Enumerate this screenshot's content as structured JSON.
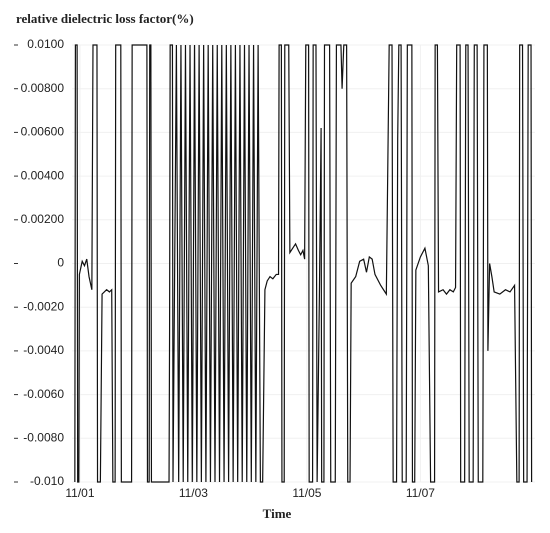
{
  "chart_data": {
    "type": "line",
    "title": "relative dielectric loss factor(%)",
    "x_label": "Time",
    "color": "#111111",
    "grid": true,
    "xlim": [
      0.86,
      9.02
    ],
    "xticks": [
      {
        "value": 1,
        "label": "11/01"
      },
      {
        "value": 3,
        "label": "11/03"
      },
      {
        "value": 5,
        "label": "11/05"
      },
      {
        "value": 7,
        "label": "11/07"
      }
    ],
    "ylim": [
      -0.01,
      0.01
    ],
    "yticks": [
      {
        "value": 0.01,
        "label": "0.0100"
      },
      {
        "value": 0.008,
        "label": "0.00800"
      },
      {
        "value": 0.006,
        "label": "0.00600"
      },
      {
        "value": 0.004,
        "label": "0.00400"
      },
      {
        "value": 0.002,
        "label": "0.00200"
      },
      0,
      {
        "value": -0.002,
        "label": "-0.0020"
      },
      {
        "value": -0.004,
        "label": "-0.0040"
      },
      {
        "value": -0.006,
        "label": "-0.0060"
      },
      {
        "value": -0.008,
        "label": "-0.0080"
      },
      {
        "value": -0.01,
        "label": "-0.010"
      }
    ],
    "x": [
      0.91,
      0.92,
      0.95,
      0.96,
      0.98,
      0.99,
      1.04,
      1.08,
      1.12,
      1.16,
      1.21,
      1.23,
      1.3,
      1.31,
      1.36,
      1.39,
      1.47,
      1.52,
      1.56,
      1.58,
      1.62,
      1.63,
      1.72,
      1.73,
      1.91,
      1.92,
      2.18,
      2.19,
      2.22,
      2.23,
      2.25,
      2.26,
      2.57,
      2.58,
      2.59,
      2.63,
      2.64,
      2.7,
      2.74,
      2.78,
      2.82,
      2.86,
      2.9,
      2.94,
      2.98,
      3.02,
      3.06,
      3.1,
      3.14,
      3.18,
      3.22,
      3.26,
      3.3,
      3.34,
      3.38,
      3.42,
      3.46,
      3.5,
      3.54,
      3.58,
      3.62,
      3.66,
      3.7,
      3.74,
      3.78,
      3.82,
      3.86,
      3.9,
      3.94,
      3.98,
      4.02,
      4.06,
      4.1,
      4.14,
      4.18,
      4.22,
      4.26,
      4.3,
      4.35,
      4.4,
      4.46,
      4.5,
      4.51,
      4.55,
      4.56,
      4.6,
      4.61,
      4.68,
      4.7,
      4.75,
      4.8,
      4.85,
      4.89,
      4.93,
      4.96,
      4.98,
      5.03,
      5.04,
      5.1,
      5.11,
      5.16,
      5.18,
      5.22,
      5.25,
      5.26,
      5.3,
      5.31,
      5.4,
      5.42,
      5.5,
      5.52,
      5.6,
      5.62,
      5.65,
      5.7,
      5.72,
      5.76,
      5.78,
      5.86,
      5.93,
      6.0,
      6.05,
      6.1,
      6.15,
      6.2,
      6.3,
      6.4,
      6.45,
      6.5,
      6.52,
      6.58,
      6.6,
      6.62,
      6.66,
      6.68,
      6.75,
      6.77,
      6.85,
      6.86,
      6.9,
      6.92,
      7.0,
      7.08,
      7.14,
      7.18,
      7.25,
      7.26,
      7.3,
      7.32,
      7.4,
      7.46,
      7.52,
      7.58,
      7.62,
      7.64,
      7.7,
      7.71,
      7.78,
      7.8,
      7.84,
      7.86,
      7.93,
      7.95,
      8.0,
      8.02,
      8.1,
      8.12,
      8.18,
      8.19,
      8.22,
      8.26,
      8.3,
      8.4,
      8.5,
      8.58,
      8.66,
      8.7,
      8.74,
      8.75,
      8.8,
      8.82,
      8.88,
      8.9,
      8.95,
      8.96
    ],
    "values": [
      -0.01,
      0.01,
      0.01,
      -0.01,
      -0.01,
      -0.0005,
      0.0001,
      -0.0001,
      0.0002,
      -0.0006,
      -0.0012,
      0.01,
      0.01,
      -0.01,
      -0.01,
      -0.0014,
      -0.0012,
      -0.0013,
      -0.0012,
      -0.01,
      -0.01,
      0.01,
      0.01,
      -0.01,
      -0.01,
      0.01,
      0.01,
      -0.01,
      -0.01,
      0.01,
      0.01,
      -0.01,
      -0.01,
      -0.003,
      0.01,
      0.01,
      -0.01,
      0.01,
      -0.01,
      0.01,
      -0.01,
      0.01,
      -0.01,
      0.01,
      -0.01,
      0.01,
      -0.01,
      0.01,
      -0.01,
      0.01,
      -0.01,
      0.01,
      -0.01,
      0.01,
      -0.01,
      0.01,
      -0.01,
      0.01,
      -0.01,
      0.01,
      -0.01,
      0.01,
      -0.01,
      0.01,
      -0.01,
      0.01,
      -0.01,
      0.01,
      -0.01,
      0.01,
      -0.01,
      0.01,
      -0.01,
      0.01,
      -0.01,
      -0.01,
      -0.0012,
      -0.0008,
      -0.0006,
      -0.0007,
      -0.0005,
      -0.0005,
      0.01,
      0.01,
      -0.01,
      -0.01,
      0.01,
      0.01,
      0.0005,
      0.0007,
      0.0009,
      0.0006,
      0.0004,
      0.0006,
      0.0002,
      0.01,
      0.01,
      -0.01,
      -0.01,
      0.01,
      0.01,
      -0.01,
      -0.0015,
      0.0062,
      -0.01,
      -0.01,
      0.01,
      0.01,
      -0.01,
      -0.01,
      0.01,
      0.01,
      0.008,
      0.01,
      0.01,
      -0.01,
      -0.01,
      -0.0009,
      -0.0006,
      0.0001,
      0.0002,
      -0.0004,
      0.0003,
      0.0002,
      -0.0005,
      -0.001,
      -0.0014,
      0.01,
      0.01,
      -0.01,
      -0.01,
      0.0057,
      0.01,
      0.01,
      -0.01,
      -0.01,
      0.01,
      0.01,
      -0.01,
      -0.01,
      -0.0003,
      0.0003,
      0.0007,
      -0.0001,
      -0.01,
      -0.01,
      0.01,
      0.01,
      -0.0013,
      -0.0012,
      -0.0014,
      -0.0012,
      -0.0013,
      -0.0011,
      0.01,
      0.01,
      -0.01,
      -0.01,
      0.01,
      0.01,
      -0.01,
      -0.01,
      0.01,
      0.01,
      -0.01,
      -0.01,
      0.01,
      0.01,
      -0.004,
      0,
      -0.0006,
      -0.0013,
      -0.0014,
      -0.0012,
      -0.0013,
      -0.001,
      -0.01,
      -0.01,
      0.01,
      0.01,
      -0.01,
      -0.01,
      0.01,
      0.01,
      -0.01
    ]
  }
}
